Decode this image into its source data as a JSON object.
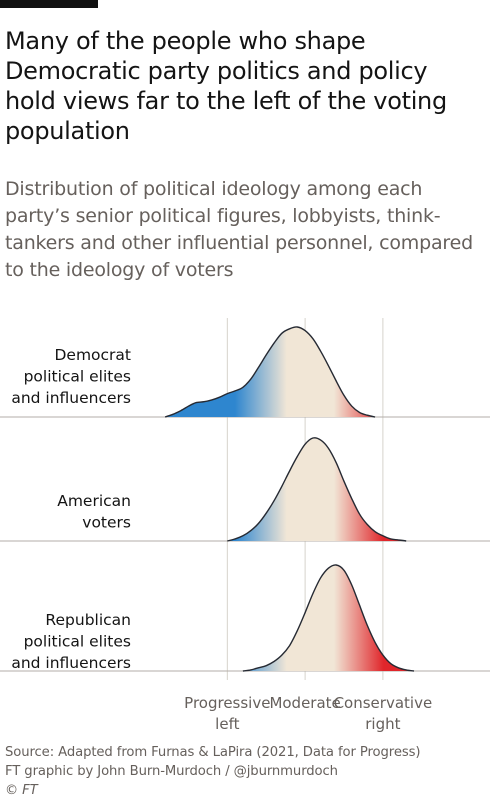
{
  "title": "Many of the people who shape Democratic party politics and policy hold views far to the left of the voting population",
  "subtitle": "Distribution of political ideology among each party’s senior political figures, lobbyists, think-tankers and other influential personnel, compared to the ideology of voters",
  "colors": {
    "left": "#2e86cf",
    "mid": "#f1e6d6",
    "right": "#e0262b",
    "grid": "#d6d2cc",
    "baseline": "#b3aea8",
    "curve": "#262a33"
  },
  "chart_data": {
    "type": "area",
    "xlim": [
      -2.2,
      2.3
    ],
    "grid_x": [
      -1,
      0,
      1
    ],
    "x_tick_labels": [
      {
        "x": -1,
        "lines": [
          "Progressive",
          "left"
        ]
      },
      {
        "x": 0,
        "lines": [
          "Moderate"
        ]
      },
      {
        "x": 1,
        "lines": [
          "Conservative",
          "right"
        ]
      }
    ],
    "series": [
      {
        "name": "Democrat political elites and influencers",
        "label_lines": [
          "Democrat",
          "political elites",
          "and influencers"
        ],
        "x": [
          -1.8,
          -1.7,
          -1.6,
          -1.5,
          -1.4,
          -1.3,
          -1.2,
          -1.1,
          -1.0,
          -0.9,
          -0.8,
          -0.7,
          -0.6,
          -0.5,
          -0.4,
          -0.3,
          -0.2,
          -0.1,
          0.0,
          0.1,
          0.2,
          0.3,
          0.4,
          0.5,
          0.6,
          0.7,
          0.8,
          0.9
        ],
        "y": [
          0.0,
          0.03,
          0.07,
          0.12,
          0.16,
          0.17,
          0.19,
          0.22,
          0.26,
          0.29,
          0.33,
          0.42,
          0.55,
          0.69,
          0.82,
          0.93,
          0.98,
          1.0,
          0.96,
          0.87,
          0.73,
          0.57,
          0.4,
          0.24,
          0.12,
          0.05,
          0.02,
          0.0
        ]
      },
      {
        "name": "American voters",
        "label_lines": [
          "American",
          "voters"
        ],
        "x": [
          -1.0,
          -0.9,
          -0.8,
          -0.7,
          -0.6,
          -0.5,
          -0.4,
          -0.3,
          -0.2,
          -0.1,
          0.0,
          0.1,
          0.2,
          0.3,
          0.4,
          0.5,
          0.6,
          0.7,
          0.8,
          0.9,
          1.0,
          1.1,
          1.2,
          1.3
        ],
        "y": [
          0.0,
          0.02,
          0.05,
          0.1,
          0.17,
          0.27,
          0.39,
          0.53,
          0.68,
          0.82,
          0.94,
          1.0,
          0.98,
          0.9,
          0.76,
          0.58,
          0.41,
          0.26,
          0.16,
          0.09,
          0.05,
          0.02,
          0.01,
          0.0
        ]
      },
      {
        "name": "Republican political elites and influencers",
        "label_lines": [
          "Republican",
          "political elites",
          "and influencers"
        ],
        "x": [
          -0.8,
          -0.7,
          -0.6,
          -0.5,
          -0.4,
          -0.3,
          -0.2,
          -0.1,
          0.0,
          0.1,
          0.2,
          0.3,
          0.4,
          0.5,
          0.6,
          0.7,
          0.8,
          0.9,
          1.0,
          1.1,
          1.2,
          1.3,
          1.4
        ],
        "y": [
          0.0,
          0.01,
          0.03,
          0.05,
          0.09,
          0.15,
          0.24,
          0.38,
          0.55,
          0.73,
          0.88,
          0.97,
          1.0,
          0.95,
          0.81,
          0.62,
          0.43,
          0.27,
          0.15,
          0.07,
          0.03,
          0.01,
          0.0
        ]
      }
    ]
  },
  "source": {
    "line1": "Source: Adapted from Furnas & LaPira (2021, Data for Progress)",
    "line2": "FT graphic by John Burn-Murdoch / @jburnmurdoch",
    "line3": "© FT"
  }
}
